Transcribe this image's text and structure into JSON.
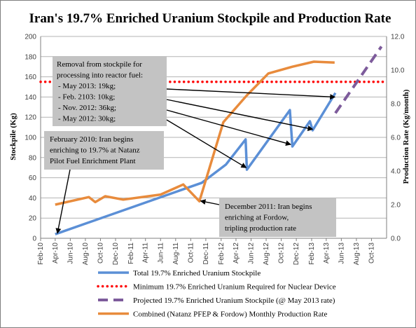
{
  "chart_data": {
    "type": "line",
    "title": "Iran's 19.7% Enriched Uranium Stockpile  and Production Rate",
    "ylabel": "Stockpile (Kg)",
    "y2label": "Production Rate (Kg/month)",
    "ylim": [
      0,
      200
    ],
    "y2lim": [
      0,
      12
    ],
    "yticks": [
      0,
      20,
      40,
      60,
      80,
      100,
      120,
      140,
      160,
      180,
      200
    ],
    "y2ticks": [
      "0.0",
      "2.0",
      "4.0",
      "6.0",
      "8.0",
      "10.0",
      "12.0"
    ],
    "xlim": [
      "2010-02-01",
      "2013-12-01"
    ],
    "xticks": [
      {
        "date": "2010-02-01",
        "label": "Feb-10"
      },
      {
        "date": "2010-04-01",
        "label": "Apr-10"
      },
      {
        "date": "2010-06-01",
        "label": "Jun-10"
      },
      {
        "date": "2010-08-01",
        "label": "Aug-10"
      },
      {
        "date": "2010-10-01",
        "label": "Oct-10"
      },
      {
        "date": "2010-12-01",
        "label": "Dec-10"
      },
      {
        "date": "2011-02-01",
        "label": "Feb-11"
      },
      {
        "date": "2011-04-01",
        "label": "Apr-11"
      },
      {
        "date": "2011-06-01",
        "label": "Jun-11"
      },
      {
        "date": "2011-08-01",
        "label": "Aug-11"
      },
      {
        "date": "2011-10-01",
        "label": "Oct-11"
      },
      {
        "date": "2011-12-01",
        "label": "Dec-11"
      },
      {
        "date": "2012-02-01",
        "label": "Feb-12"
      },
      {
        "date": "2012-04-01",
        "label": "Apr-12"
      },
      {
        "date": "2012-06-01",
        "label": "Jun-12"
      },
      {
        "date": "2012-08-01",
        "label": "Aug-12"
      },
      {
        "date": "2012-10-01",
        "label": "Oct-12"
      },
      {
        "date": "2012-12-01",
        "label": "Dec-12"
      },
      {
        "date": "2013-02-01",
        "label": "Feb-13"
      },
      {
        "date": "2013-04-01",
        "label": "Apr-13"
      },
      {
        "date": "2013-06-01",
        "label": "Jun-13"
      },
      {
        "date": "2013-08-01",
        "label": "Aug-13"
      },
      {
        "date": "2013-10-01",
        "label": "Oct-13"
      }
    ],
    "series": [
      {
        "name": "Total 19.7% Enriched Uranium Stockpile",
        "axis": "left",
        "style": "solid",
        "color": "#5b8fd6",
        "points": [
          [
            "2010-04-01",
            4
          ],
          [
            "2011-11-15",
            55
          ],
          [
            "2012-02-20",
            73
          ],
          [
            "2012-05-10",
            98
          ],
          [
            "2012-05-15",
            68
          ],
          [
            "2012-11-05",
            127
          ],
          [
            "2012-11-15",
            91
          ],
          [
            "2013-01-25",
            116
          ],
          [
            "2013-02-05",
            107
          ],
          [
            "2013-05-08",
            144
          ]
        ]
      },
      {
        "name": "Minimum 19.7% Enriched Uranium Required for Nuclear Device",
        "axis": "left",
        "style": "dotted",
        "color": "#ff0000",
        "points": [
          [
            "2010-02-01",
            155
          ],
          [
            "2013-12-01",
            155
          ]
        ]
      },
      {
        "name": "Projected 19.7% Enriched Uranium Stockpile (@ May 2013 rate)",
        "axis": "left",
        "style": "dashed",
        "color": "#7d5b9b",
        "points": [
          [
            "2013-05-08",
            124
          ],
          [
            "2013-11-10",
            190
          ]
        ]
      },
      {
        "name": "Combined (Natanz PFEP & Fordow) Monthly Production Rate",
        "axis": "right",
        "style": "solid",
        "color": "#e88b3c",
        "points": [
          [
            "2010-04-01",
            2.0
          ],
          [
            "2010-08-15",
            2.45
          ],
          [
            "2010-09-10",
            2.15
          ],
          [
            "2010-10-20",
            2.5
          ],
          [
            "2011-01-01",
            2.3
          ],
          [
            "2011-06-01",
            2.6
          ],
          [
            "2011-09-01",
            3.2
          ],
          [
            "2011-11-05",
            2.2
          ],
          [
            "2012-02-10",
            6.9
          ],
          [
            "2012-05-15",
            8.5
          ],
          [
            "2012-08-10",
            9.8
          ],
          [
            "2012-11-15",
            10.2
          ],
          [
            "2013-02-10",
            10.5
          ],
          [
            "2013-05-05",
            10.45
          ]
        ]
      }
    ],
    "annotations": [
      {
        "id": "removal",
        "lines": [
          "Removal from stockpile for",
          "processing into reactor fuel:",
          "-  May 2013: 19kg;",
          "- Feb. 2103: 10kg;",
          "- Nov. 2012: 36kg;",
          "- May 2012: 30kg;"
        ],
        "targets": [
          [
            "2013-05-06",
            140
          ],
          [
            "2013-02-05",
            108
          ],
          [
            "2012-11-08",
            93
          ],
          [
            "2012-05-12",
            70
          ]
        ]
      },
      {
        "id": "feb2010",
        "lines": [
          "February 2010: Iran begins",
          "enriching to 19.7% at Natanz",
          "Pilot Fuel Enrichment Plant"
        ],
        "targets": [
          [
            "2010-04-10",
            5
          ]
        ]
      },
      {
        "id": "dec2011",
        "lines": [
          "December 2011: Iran begins",
          "enriching at Fordow,",
          "tripling production rate"
        ],
        "targets": [
          [
            "2011-11-10",
            37
          ]
        ]
      }
    ],
    "legend_position": "bottom",
    "grid": true
  }
}
